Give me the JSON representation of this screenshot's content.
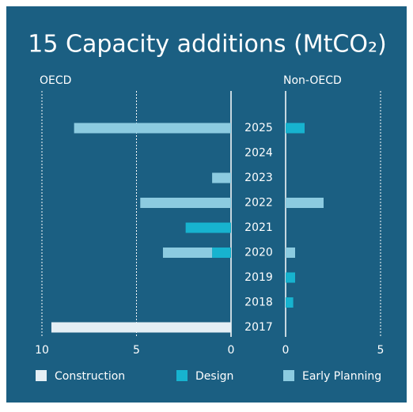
{
  "chart_data": {
    "type": "bar",
    "orientation": "horizontal",
    "title": "15 Capacity additions (MtCO₂)",
    "categories": [
      "2025",
      "2024",
      "2023",
      "2022",
      "2021",
      "2020",
      "2019",
      "2018",
      "2017"
    ],
    "panels": [
      {
        "title": "OECD",
        "xlim": [
          10,
          0
        ],
        "xticks": [
          10,
          5,
          0
        ],
        "series": [
          {
            "name": "Construction",
            "color": "#e4eff5",
            "values": [
              0,
              0,
              0,
              0,
              0,
              0,
              0,
              0,
              9.5
            ]
          },
          {
            "name": "Design",
            "color": "#17b3cf",
            "values": [
              0,
              0,
              0,
              0,
              2.4,
              1.0,
              0,
              0,
              0
            ]
          },
          {
            "name": "Early Planning",
            "color": "#8ccbe0",
            "values": [
              8.3,
              0,
              1.0,
              4.8,
              0,
              2.6,
              0,
              0,
              0
            ]
          }
        ]
      },
      {
        "title": "Non-OECD",
        "xlim": [
          0,
          5
        ],
        "xticks": [
          0,
          5
        ],
        "series": [
          {
            "name": "Construction",
            "color": "#e4eff5",
            "values": [
              0,
              0,
              0,
              0,
              0,
              0,
              0,
              0,
              0
            ]
          },
          {
            "name": "Design",
            "color": "#17b3cf",
            "values": [
              1.0,
              0,
              0,
              0,
              0,
              0,
              0.5,
              0.4,
              0
            ]
          },
          {
            "name": "Early Planning",
            "color": "#8ccbe0",
            "values": [
              0,
              0,
              0,
              2.0,
              0,
              0.5,
              0,
              0,
              0
            ]
          }
        ]
      }
    ]
  }
}
